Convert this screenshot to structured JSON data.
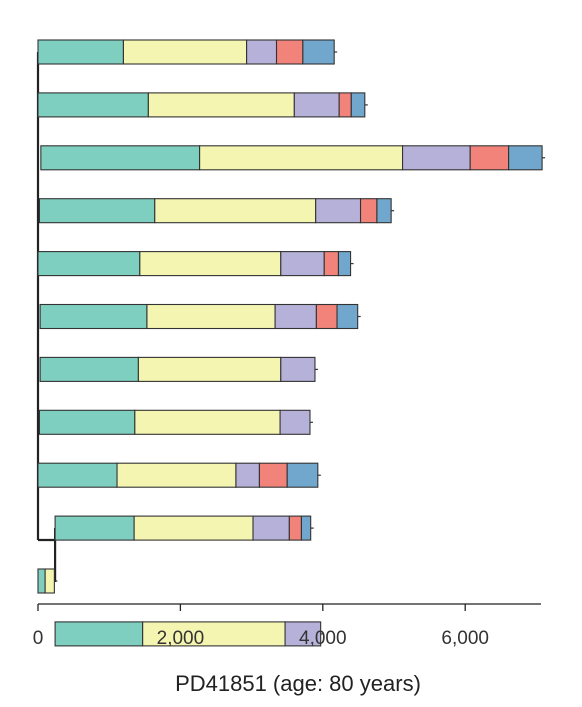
{
  "chart_data": {
    "type": "bar",
    "orientation": "horizontal",
    "stacked": true,
    "xlabel": "PD41851 (age: 80 years)",
    "xlim": [
      0,
      7200
    ],
    "x_ticks": [
      0,
      2000,
      4000,
      6000
    ],
    "x_tick_labels": [
      "0",
      "2,000",
      "4,000",
      "6,000"
    ],
    "grid": false,
    "legend": "none",
    "segment_colors": [
      "#7fcfc1",
      "#f5f5b2",
      "#b5b1d8",
      "#f2837a",
      "#71a7cc"
    ],
    "bars": [
      {
        "start": 0,
        "segments": [
          1200,
          1730,
          420,
          370,
          440
        ]
      },
      {
        "start": 0,
        "segments": [
          1550,
          2050,
          630,
          170,
          190
        ]
      },
      {
        "start": 40,
        "segments": [
          2230,
          2850,
          950,
          540,
          470
        ]
      },
      {
        "start": 20,
        "segments": [
          1620,
          2260,
          630,
          230,
          200
        ]
      },
      {
        "start": 0,
        "segments": [
          1430,
          1980,
          610,
          200,
          170
        ]
      },
      {
        "start": 30,
        "segments": [
          1500,
          1800,
          580,
          290,
          290
        ]
      },
      {
        "start": 30,
        "segments": [
          1380,
          2000,
          480
        ]
      },
      {
        "start": 20,
        "segments": [
          1340,
          2040,
          420
        ]
      },
      {
        "start": 0,
        "segments": [
          1110,
          1670,
          330,
          390,
          430
        ]
      },
      {
        "start": 240,
        "segments": [
          1110,
          1670,
          510,
          170,
          130
        ]
      },
      {
        "start": 0,
        "segments": [
          100,
          130
        ]
      },
      {
        "start": 240,
        "segments": [
          1230,
          2000,
          500
        ]
      }
    ],
    "tree_dividers": [
      0,
      40,
      20,
      0,
      30,
      30,
      20,
      0,
      240,
      240
    ]
  }
}
